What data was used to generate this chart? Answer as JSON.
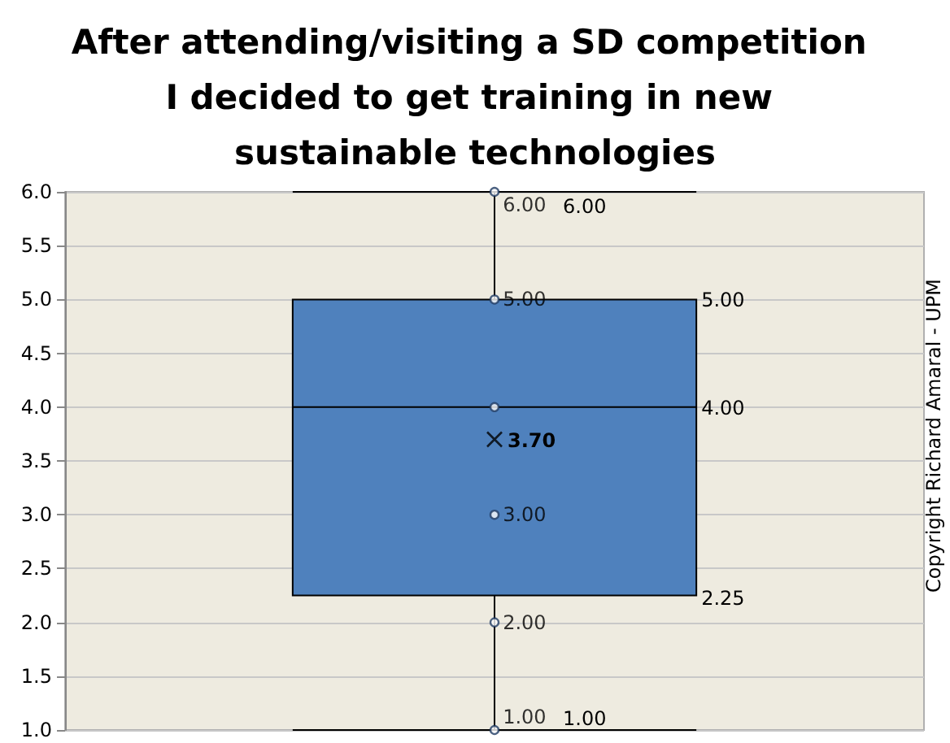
{
  "chart_data": {
    "type": "box",
    "title": "After attending/visiting a SD competition I decided to get training in new sustainable technologies",
    "categories": [
      null
    ],
    "series": [
      {
        "color": "#4f81bd",
        "boxes": [
          {
            "low": 1,
            "q1": 2.25,
            "median": 4,
            "q3": 5,
            "high": 6,
            "mean": 3.7
          }
        ]
      },
      {
        "type": "scatter",
        "color": "#1f3b63",
        "x": [
          null,
          null,
          null,
          null,
          null,
          null
        ],
        "values": [
          1,
          2,
          3,
          4,
          5,
          6
        ],
        "value_labels": [
          "1.00",
          "2.00",
          "3.00",
          null,
          "5.00",
          "6.00"
        ]
      }
    ],
    "ylim": [
      1,
      6
    ],
    "yticks": [
      {
        "value": 1,
        "label": "1.0"
      },
      {
        "value": 1.5,
        "label": "1.5"
      },
      {
        "value": 2,
        "label": "2.0"
      },
      {
        "value": 2.5,
        "label": "2.5"
      },
      {
        "value": 3,
        "label": "3.0"
      },
      {
        "value": 3.5,
        "label": "3.5"
      },
      {
        "value": 4,
        "label": "4.0"
      },
      {
        "value": 4.5,
        "label": "4.5"
      },
      {
        "value": 5,
        "label": "5.0"
      },
      {
        "value": 5.5,
        "label": "5.5"
      },
      {
        "value": 6,
        "label": "6.0"
      }
    ],
    "grid": "y",
    "marker": "circle",
    "annotations": [
      "6.00",
      "5.00",
      "4.00",
      "3.70",
      "2.25",
      "1.00",
      "Copyright Richard Amaral - UPM"
    ]
  }
}
